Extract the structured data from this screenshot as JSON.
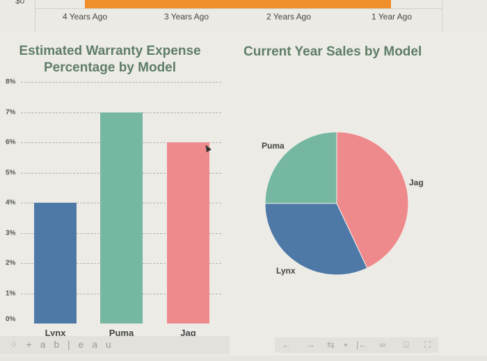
{
  "top_chart": {
    "y_label": "$0",
    "x_labels": [
      "4 Years Ago",
      "3 Years Ago",
      "2 Years Ago",
      "1 Year Ago"
    ],
    "bar_color": "#ef8e2a"
  },
  "bar_chart": {
    "title_line1": "Estimated Warranty Expense",
    "title_line2": "Percentage by Model",
    "y_ticks": [
      "8%",
      "7%",
      "6%",
      "5%",
      "4%",
      "3%",
      "2%",
      "1%",
      "0%"
    ],
    "categories": [
      "Lynx",
      "Puma",
      "Jag"
    ]
  },
  "pie_chart": {
    "title": "Current Year Sales by Model",
    "labels": {
      "puma": "Puma",
      "jag": "Jag",
      "lynx": "Lynx"
    }
  },
  "footer": {
    "logo_text": "+ a b | e a u",
    "toolbar_icons": [
      "undo-icon",
      "redo-icon",
      "revert-icon",
      "dropdown-icon",
      "reset-icon",
      "share-icon",
      "download-icon",
      "fullscreen-icon"
    ]
  },
  "colors": {
    "lynx": "#4e79a7",
    "puma": "#76b7a2",
    "jag": "#ef8a8c",
    "title": "#5f7d66"
  },
  "chart_data": [
    {
      "type": "bar",
      "title": "Estimated Warranty Expense Percentage by Model",
      "categories": [
        "Lynx",
        "Puma",
        "Jag"
      ],
      "values": [
        4,
        7,
        6
      ],
      "xlabel": "",
      "ylabel": "",
      "y_unit": "%",
      "ylim": [
        0,
        8
      ],
      "y_ticks": [
        0,
        1,
        2,
        3,
        4,
        5,
        6,
        7,
        8
      ],
      "grid": true,
      "colors": [
        "#4e79a7",
        "#76b7a2",
        "#ef8a8c"
      ]
    },
    {
      "type": "pie",
      "title": "Current Year Sales by Model",
      "categories": [
        "Jag",
        "Lynx",
        "Puma"
      ],
      "values": [
        43,
        32,
        25
      ],
      "value_unit": "% (estimated from slice angles)",
      "colors": [
        "#ef8a8c",
        "#4e79a7",
        "#76b7a2"
      ],
      "legend": "labels on slices"
    }
  ]
}
